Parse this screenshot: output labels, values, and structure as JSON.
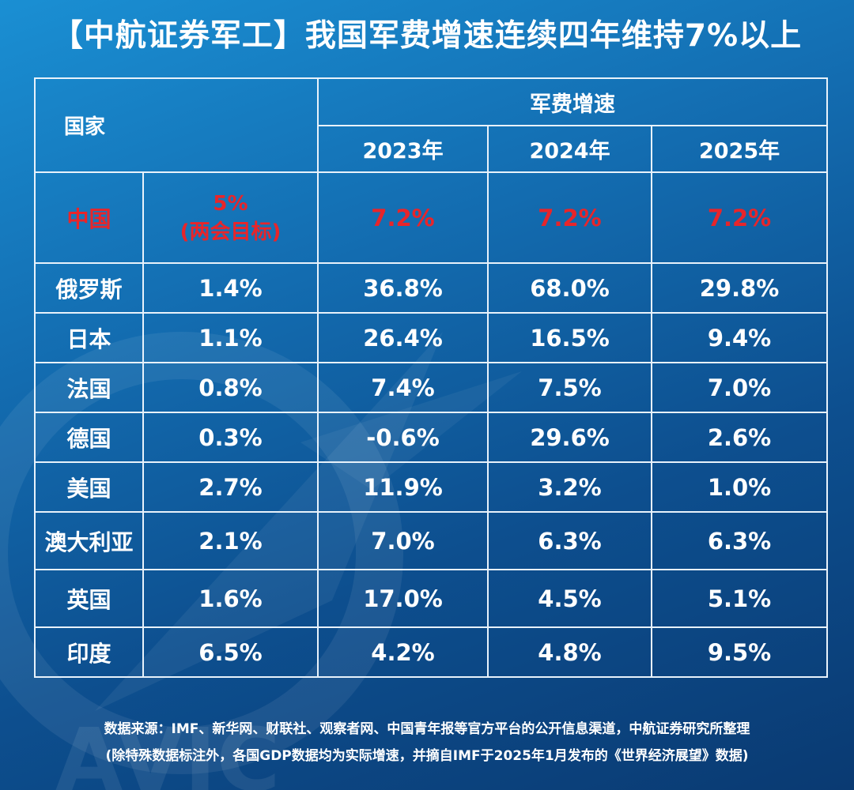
{
  "title": "【中航证券军工】我国军费增速连续四年维持7%以上",
  "table": {
    "country_header": "国家",
    "group_header": "军费增速",
    "years": [
      "2023年",
      "2024年",
      "2025年"
    ],
    "china": {
      "country": "中国",
      "target_value": "5%",
      "target_note": "(两会目标)",
      "values": [
        "7.2%",
        "7.2%",
        "7.2%"
      ]
    },
    "rows": [
      {
        "country": "俄罗斯",
        "gdp": "1.4%",
        "values": [
          "36.8%",
          "68.0%",
          "29.8%"
        ]
      },
      {
        "country": "日本",
        "gdp": "1.1%",
        "values": [
          "26.4%",
          "16.5%",
          "9.4%"
        ]
      },
      {
        "country": "法国",
        "gdp": "0.8%",
        "values": [
          "7.4%",
          "7.5%",
          "7.0%"
        ]
      },
      {
        "country": "德国",
        "gdp": "0.3%",
        "values": [
          "-0.6%",
          "29.6%",
          "2.6%"
        ]
      },
      {
        "country": "美国",
        "gdp": "2.7%",
        "values": [
          "11.9%",
          "3.2%",
          "1.0%"
        ]
      },
      {
        "country": "澳大利亚",
        "gdp": "2.1%",
        "values": [
          "7.0%",
          "6.3%",
          "6.3%"
        ]
      },
      {
        "country": "英国",
        "gdp": "1.6%",
        "values": [
          "17.0%",
          "4.5%",
          "5.1%"
        ]
      },
      {
        "country": "印度",
        "gdp": "6.5%",
        "values": [
          "4.2%",
          "4.8%",
          "9.5%"
        ]
      }
    ]
  },
  "source_line1": "数据来源：IMF、新华网、财联社、观察者网、中国青年报等官方平台的公开信息渠道，中航证券研究所整理",
  "source_line2": "(除特殊数据标注外，各国GDP数据均为实际增速，并摘自IMF于2025年1月发布的《世界经济展望》数据)",
  "watermark": "AVIC",
  "colors": {
    "highlight_red": "#e8252a",
    "background_top": "#1a8fd3",
    "background_bottom": "#0a3a72",
    "grid_line": "#e8f2fb"
  }
}
